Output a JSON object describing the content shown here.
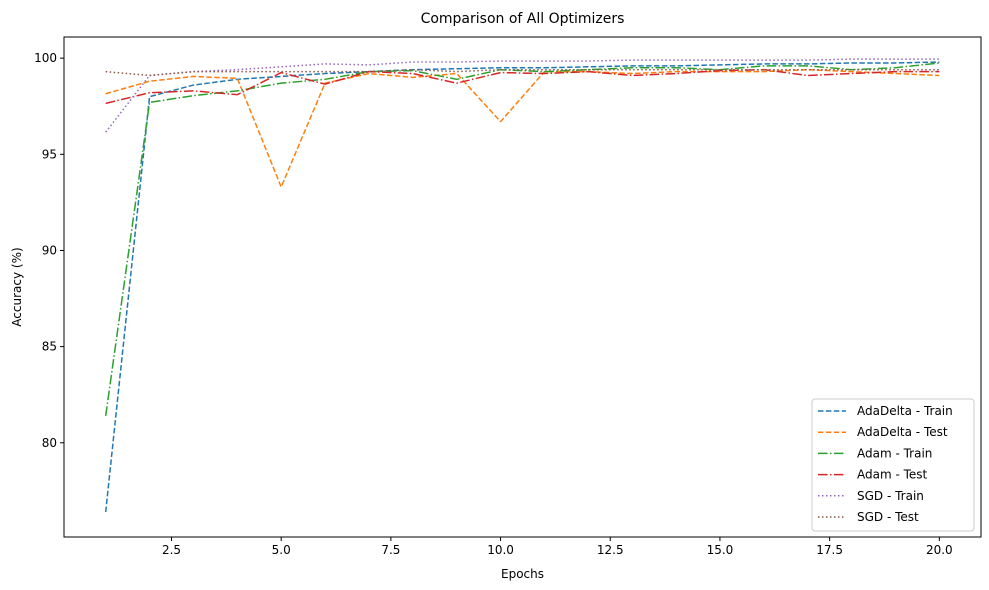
{
  "chart_data": {
    "type": "line",
    "title": "Comparison of All Optimizers",
    "xlabel": "Epochs",
    "ylabel": "Accuracy (%)",
    "xlim": [
      0.05,
      20.95
    ],
    "ylim": [
      75.1,
      101.1
    ],
    "xticks": [
      2.5,
      5.0,
      7.5,
      10.0,
      12.5,
      15.0,
      17.5,
      20.0
    ],
    "xtick_labels": [
      "2.5",
      "5.0",
      "7.5",
      "10.0",
      "12.5",
      "15.0",
      "17.5",
      "20.0"
    ],
    "yticks": [
      80,
      85,
      90,
      95,
      100
    ],
    "ytick_labels": [
      "80",
      "85",
      "90",
      "95",
      "100"
    ],
    "grid": false,
    "legend_position": "lower-right",
    "x": [
      1,
      2,
      3,
      4,
      5,
      6,
      7,
      8,
      9,
      10,
      11,
      12,
      13,
      14,
      15,
      16,
      17,
      18,
      19,
      20
    ],
    "series": [
      {
        "name": "AdaDelta - Train",
        "color": "#1f77b4",
        "style": "dashed",
        "values": [
          76.4,
          98.0,
          98.6,
          98.9,
          99.05,
          99.2,
          99.3,
          99.4,
          99.45,
          99.5,
          99.5,
          99.55,
          99.6,
          99.6,
          99.65,
          99.7,
          99.7,
          99.75,
          99.75,
          99.8
        ]
      },
      {
        "name": "AdaDelta - Test",
        "color": "#ff7f0e",
        "style": "dashed",
        "values": [
          98.15,
          98.8,
          99.05,
          98.95,
          93.3,
          98.7,
          99.2,
          99.0,
          99.2,
          96.7,
          99.3,
          99.3,
          99.2,
          99.3,
          99.3,
          99.3,
          99.4,
          99.3,
          99.2,
          99.1
        ]
      },
      {
        "name": "Adam - Train",
        "color": "#2ca02c",
        "style": "dashdot",
        "values": [
          81.4,
          97.7,
          98.05,
          98.3,
          98.7,
          98.9,
          99.3,
          99.35,
          98.9,
          99.4,
          99.3,
          99.4,
          99.5,
          99.5,
          99.4,
          99.6,
          99.6,
          99.4,
          99.5,
          99.75
        ]
      },
      {
        "name": "Adam - Test",
        "color": "#d62728",
        "style": "dashdot",
        "values": [
          97.65,
          98.2,
          98.3,
          98.1,
          99.25,
          98.65,
          99.3,
          99.2,
          98.7,
          99.25,
          99.2,
          99.3,
          99.1,
          99.2,
          99.35,
          99.4,
          99.1,
          99.2,
          99.3,
          99.3
        ]
      },
      {
        "name": "SGD - Train",
        "color": "#9467bd",
        "style": "dotted",
        "values": [
          96.15,
          99.1,
          99.3,
          99.4,
          99.55,
          99.7,
          99.65,
          99.8,
          99.8,
          99.85,
          99.85,
          99.85,
          99.9,
          99.9,
          99.9,
          99.9,
          99.9,
          99.95,
          99.95,
          99.95
        ]
      },
      {
        "name": "SGD - Test",
        "color": "#8c564b",
        "style": "dotted",
        "values": [
          99.3,
          99.1,
          99.3,
          99.3,
          99.3,
          99.3,
          99.3,
          99.4,
          99.3,
          99.4,
          99.4,
          99.4,
          99.4,
          99.4,
          99.4,
          99.4,
          99.4,
          99.4,
          99.4,
          99.4
        ]
      }
    ]
  }
}
